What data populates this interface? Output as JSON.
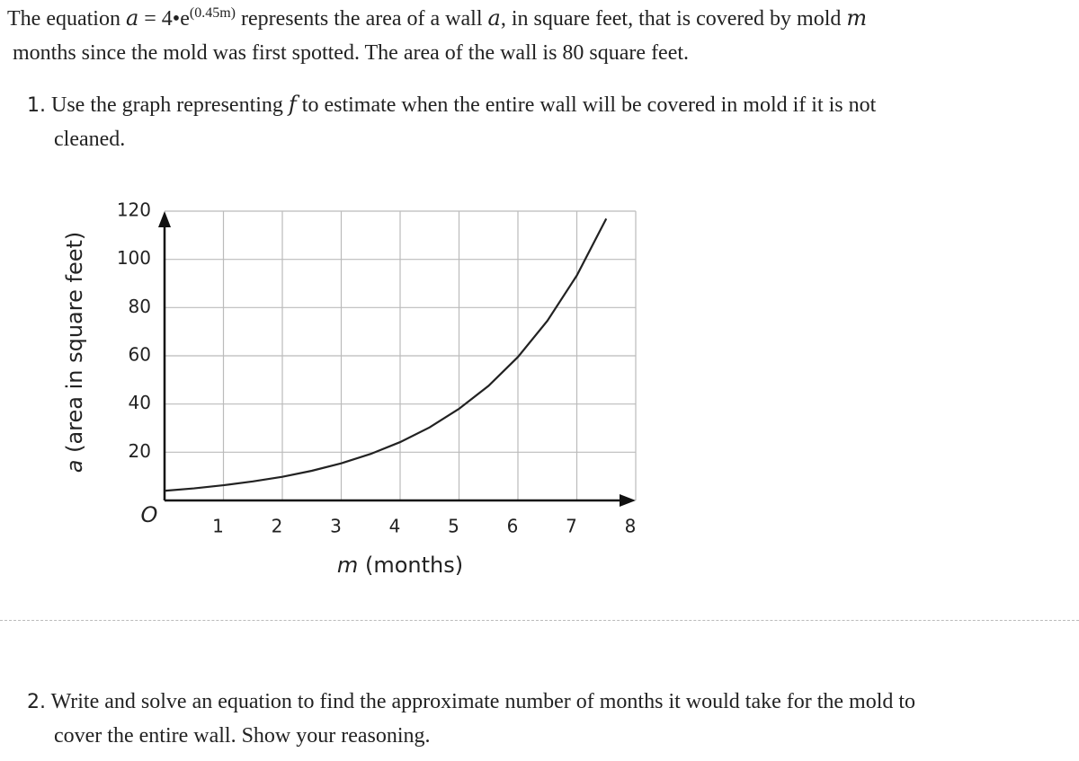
{
  "intro": {
    "lines": [
      {
        "before": "The equation",
        "var": "a",
        "rhs": "= 4•e",
        "exponent": "(0.45m)",
        "after": "represents the area of a wall",
        "var2": "a",
        "after2": ", in square feet, that is covered by mold",
        "var3": "m"
      },
      {
        "text": "months since the mold was first spotted. The area of the wall is 80 square feet."
      }
    ]
  },
  "questions": [
    {
      "number": "1.",
      "lines": [
        "Use the graph representing",
        "f",
        "to estimate when the entire wall will be covered in mold if it is not",
        "cleaned."
      ]
    },
    {
      "number": "2.",
      "lines": [
        "Write and solve an equation to find the approximate number of months it would take for the mold to",
        "cover the entire wall. Show your reasoning."
      ]
    }
  ],
  "chart_data": {
    "type": "line",
    "xlabel_var": "m",
    "xlabel": "(months)",
    "ylabel_var": "a",
    "ylabel": "(area in square feet)",
    "origin_label": "O",
    "x": [
      0,
      0.5,
      1,
      1.5,
      2,
      2.5,
      3,
      3.5,
      4,
      4.5,
      5,
      5.5,
      6,
      6.5,
      7,
      7.5
    ],
    "series": [
      {
        "color": "#222222",
        "values": [
          4,
          5.0,
          6.3,
          7.9,
          9.8,
          12.3,
          15.4,
          19.3,
          24.2,
          30.3,
          38.0,
          47.5,
          59.5,
          74.5,
          93.3,
          116.9
        ]
      }
    ],
    "xlim": [
      0,
      8
    ],
    "ylim": [
      0,
      120
    ],
    "xticks": [
      1,
      2,
      3,
      4,
      5,
      6,
      7,
      8
    ],
    "yticks": [
      20,
      40,
      60,
      80,
      100,
      120
    ],
    "grid": true
  }
}
